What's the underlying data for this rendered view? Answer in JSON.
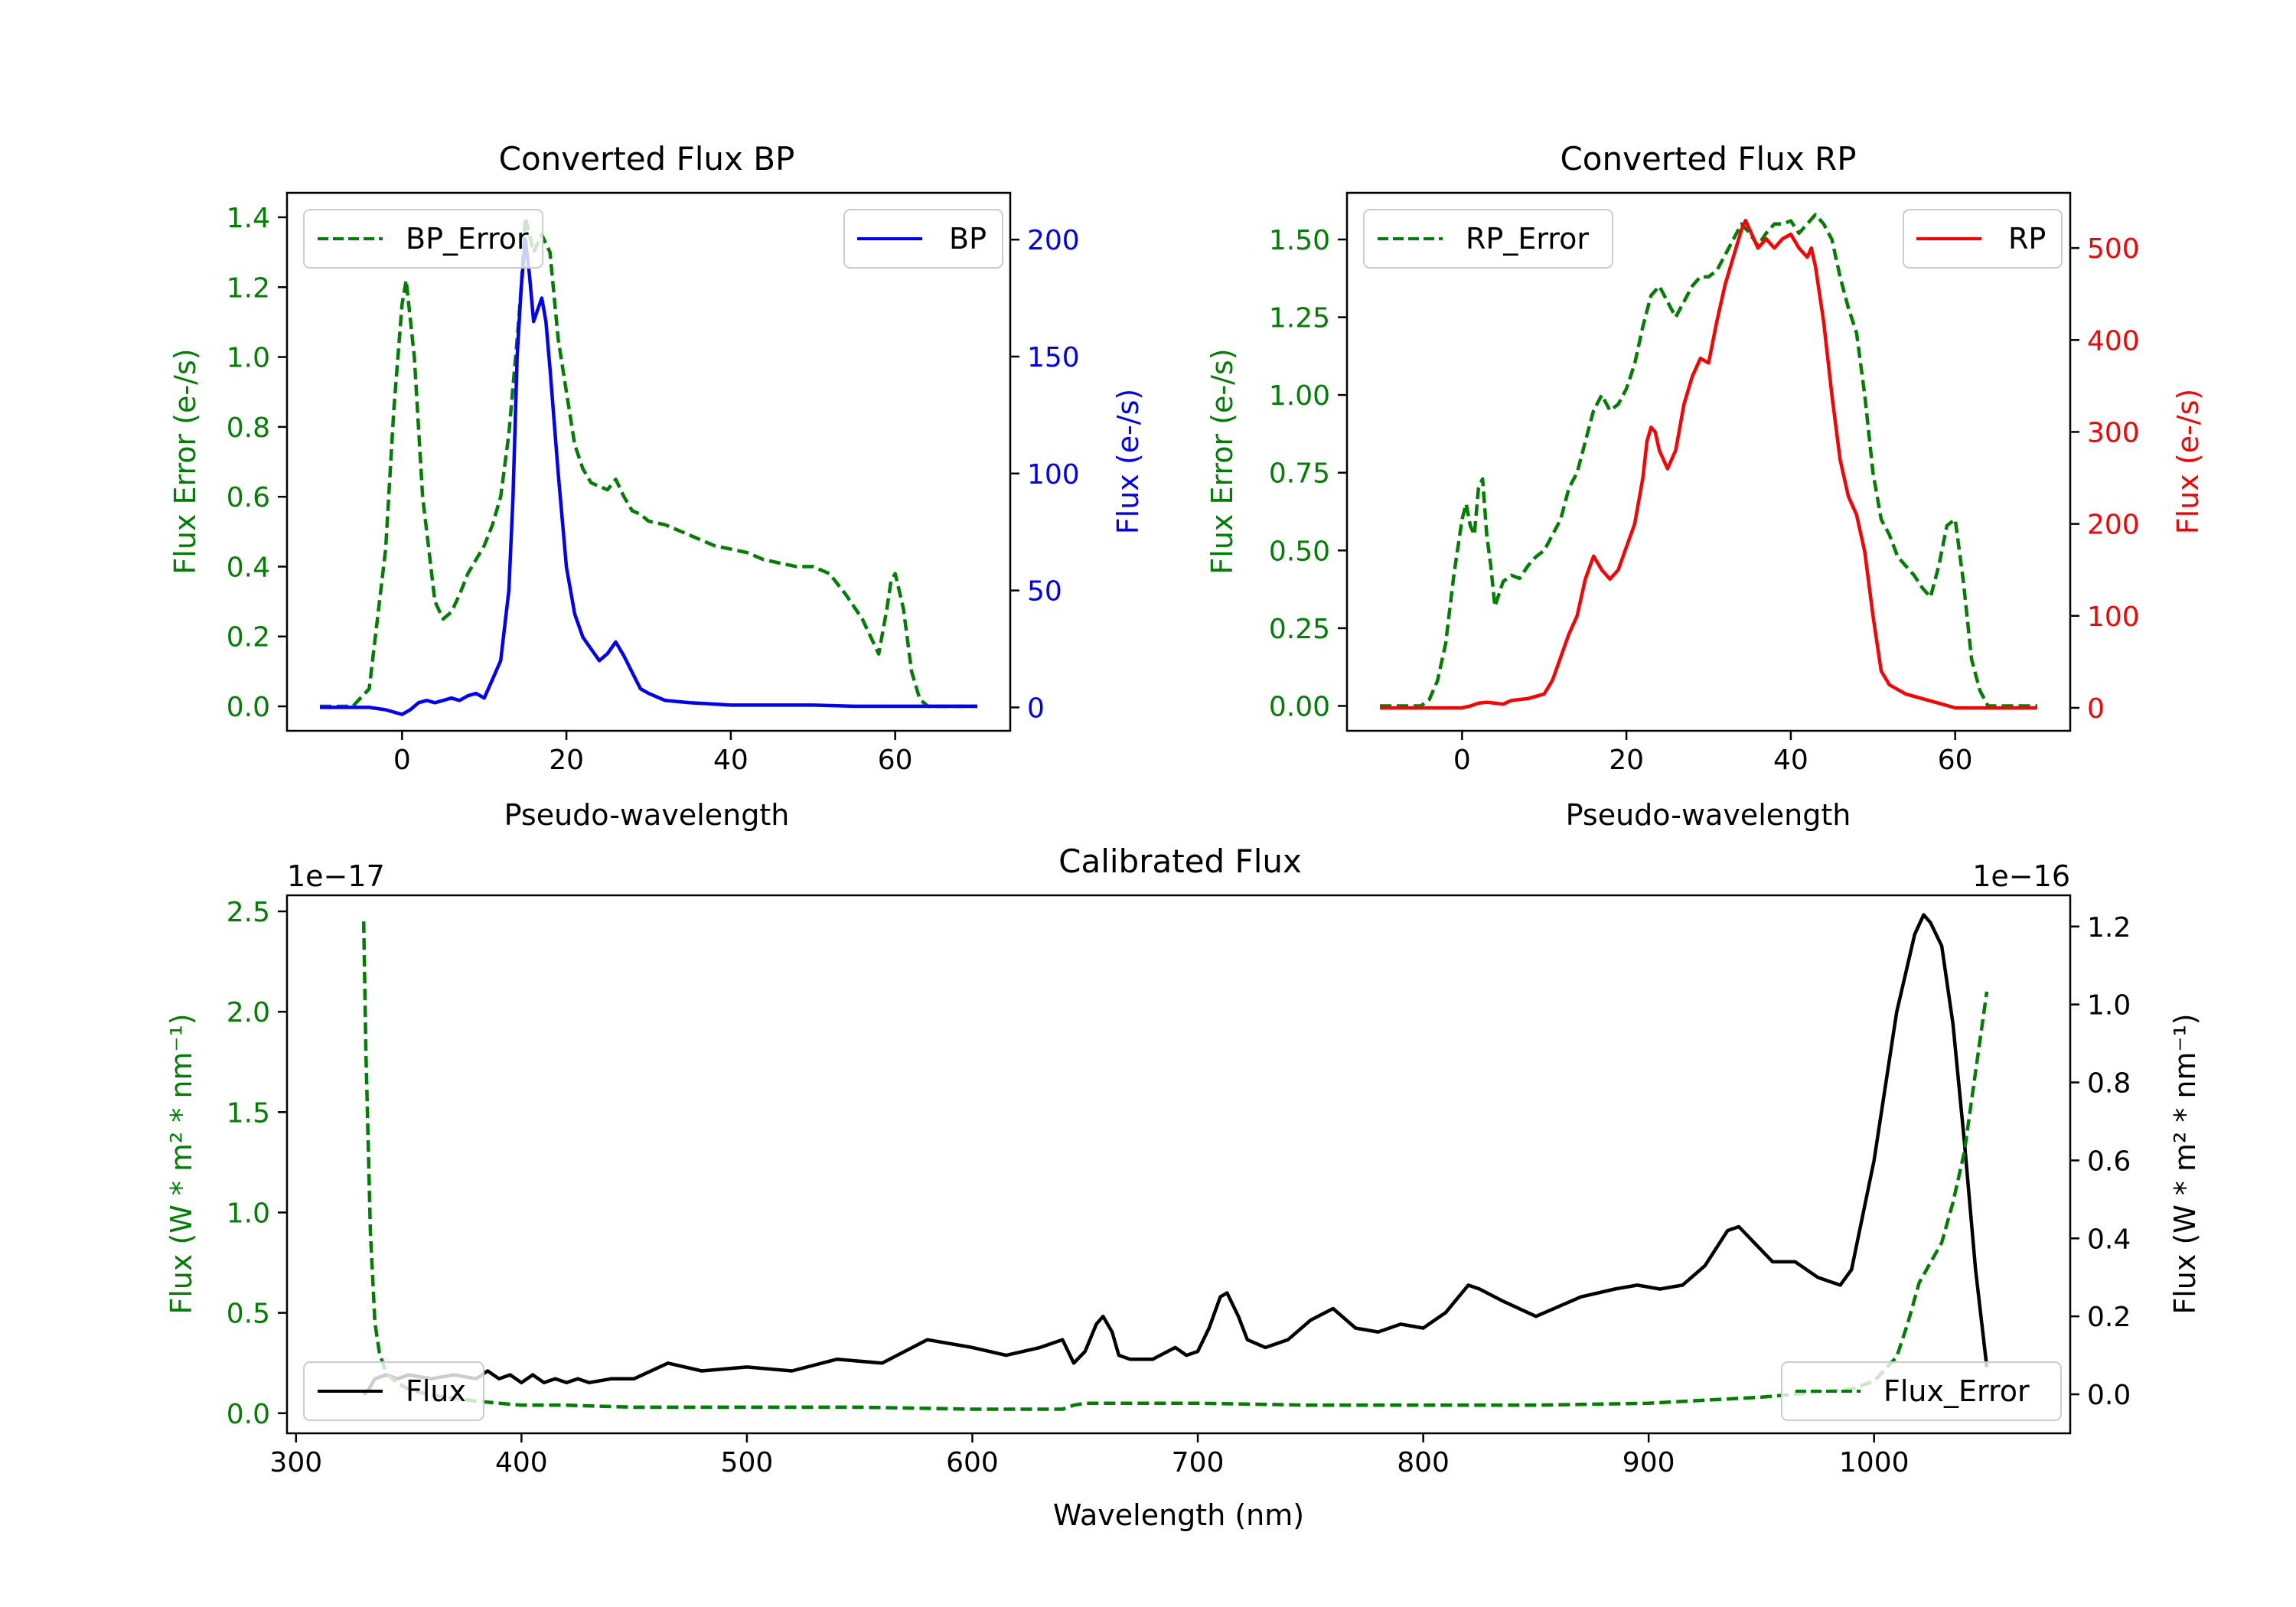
{
  "colors": {
    "bp": "#0000ff",
    "rp": "#ff0000",
    "error": "#008000",
    "flux": "#000000",
    "legend_border": "#cccccc"
  },
  "chart_data": [
    {
      "id": "bp",
      "type": "line",
      "title": "Converted Flux BP",
      "xlabel": "Pseudo-wavelength",
      "ylabel_left": "Flux Error (e-/s)",
      "ylabel_right": "Flux (e-/s)",
      "xlim": [
        -14,
        74
      ],
      "ylim_left": [
        -0.07,
        1.47
      ],
      "ylim_right": [
        -10,
        220
      ],
      "xticks": [
        0,
        20,
        40,
        60
      ],
      "yticks_left": [
        "0.0",
        "0.2",
        "0.4",
        "0.6",
        "0.8",
        "1.0",
        "1.2",
        "1.4"
      ],
      "yticks_right": [
        "0",
        "50",
        "100",
        "150",
        "200"
      ],
      "legend_left": "BP_Error",
      "legend_right": "BP",
      "series": [
        {
          "name": "BP_Error",
          "axis": "left",
          "style": "dashed",
          "color": "error",
          "x": [
            -10,
            -6,
            -4,
            -2,
            -1,
            0,
            0.5,
            1.5,
            2.5,
            3,
            4,
            5,
            6,
            7,
            8,
            9,
            10,
            11,
            12,
            13,
            14,
            14.5,
            15,
            16,
            17,
            18,
            19,
            20,
            21,
            22,
            23,
            24,
            25,
            26,
            27,
            28,
            29,
            30,
            32,
            34,
            36,
            38,
            40,
            42,
            44,
            46,
            48,
            50,
            52,
            54,
            56,
            57,
            58,
            59,
            59.5,
            60,
            61,
            62,
            63,
            64,
            66,
            68,
            70
          ],
          "y": [
            0.0,
            0.0,
            0.05,
            0.45,
            0.85,
            1.15,
            1.22,
            1.0,
            0.6,
            0.5,
            0.3,
            0.25,
            0.27,
            0.32,
            0.38,
            0.42,
            0.46,
            0.52,
            0.6,
            0.78,
            1.05,
            1.2,
            1.4,
            1.3,
            1.35,
            1.3,
            1.05,
            0.9,
            0.75,
            0.68,
            0.64,
            0.63,
            0.62,
            0.65,
            0.6,
            0.56,
            0.55,
            0.53,
            0.52,
            0.5,
            0.48,
            0.46,
            0.45,
            0.44,
            0.42,
            0.41,
            0.4,
            0.4,
            0.38,
            0.32,
            0.25,
            0.2,
            0.15,
            0.28,
            0.36,
            0.38,
            0.28,
            0.1,
            0.02,
            0.0,
            0.0,
            0.0,
            0.0
          ]
        },
        {
          "name": "BP",
          "axis": "right",
          "style": "solid",
          "color": "bp",
          "x": [
            -10,
            -4,
            -2,
            0,
            1,
            2,
            3,
            4,
            5,
            6,
            7,
            8,
            9,
            10,
            11,
            12,
            13,
            13.5,
            14,
            14.5,
            15,
            15.5,
            16,
            16.5,
            17,
            17.5,
            18,
            19,
            20,
            21,
            22,
            23,
            24,
            25,
            26,
            27,
            28,
            29,
            30,
            32,
            35,
            40,
            45,
            50,
            55,
            60,
            65,
            70
          ],
          "y": [
            0,
            0,
            -1,
            -3,
            -1,
            2,
            3,
            2,
            3,
            4,
            3,
            5,
            6,
            4,
            12,
            20,
            50,
            90,
            150,
            180,
            200,
            185,
            165,
            170,
            175,
            165,
            145,
            100,
            60,
            40,
            30,
            25,
            20,
            23,
            28,
            22,
            15,
            8,
            6,
            3,
            2,
            1,
            1,
            1,
            0.5,
            0.5,
            0.5,
            0.5
          ]
        }
      ]
    },
    {
      "id": "rp",
      "type": "line",
      "title": "Converted Flux RP",
      "xlabel": "Pseudo-wavelength",
      "ylabel_left": "Flux Error (e-/s)",
      "ylabel_right": "Flux (e-/s)",
      "xlim": [
        -14,
        74
      ],
      "ylim_left": [
        -0.08,
        1.65
      ],
      "ylim_right": [
        -25,
        560
      ],
      "xticks": [
        0,
        20,
        40,
        60
      ],
      "yticks_left": [
        "0.00",
        "0.25",
        "0.50",
        "0.75",
        "1.00",
        "1.25",
        "1.50"
      ],
      "yticks_right": [
        "0",
        "100",
        "200",
        "300",
        "400",
        "500"
      ],
      "legend_left": "RP_Error",
      "legend_right": "RP",
      "series": [
        {
          "name": "RP_Error",
          "axis": "left",
          "style": "dashed",
          "color": "error",
          "x": [
            -10,
            -5,
            -4,
            -3,
            -2,
            -1,
            0,
            0.5,
            1,
            1.5,
            2,
            2.5,
            3,
            3.5,
            4,
            5,
            6,
            7,
            8,
            9,
            10,
            11,
            12,
            13,
            14,
            15,
            16,
            17,
            18,
            19,
            20,
            21,
            22,
            23,
            24,
            25,
            26,
            27,
            28,
            29,
            30,
            31,
            32,
            33,
            34,
            35,
            36,
            37,
            38,
            39,
            40,
            41,
            42,
            43,
            44,
            45,
            46,
            47,
            48,
            49,
            50,
            51,
            52,
            53,
            54,
            55,
            56,
            57,
            58,
            59,
            60,
            61,
            62,
            63,
            64,
            66,
            70
          ],
          "y": [
            0.0,
            0.0,
            0.02,
            0.08,
            0.2,
            0.42,
            0.6,
            0.65,
            0.58,
            0.55,
            0.7,
            0.73,
            0.55,
            0.45,
            0.32,
            0.4,
            0.42,
            0.41,
            0.45,
            0.48,
            0.5,
            0.55,
            0.6,
            0.7,
            0.75,
            0.85,
            0.95,
            1.0,
            0.95,
            0.97,
            1.02,
            1.1,
            1.22,
            1.32,
            1.35,
            1.3,
            1.25,
            1.3,
            1.35,
            1.38,
            1.38,
            1.4,
            1.45,
            1.5,
            1.55,
            1.52,
            1.48,
            1.52,
            1.55,
            1.55,
            1.56,
            1.52,
            1.55,
            1.58,
            1.55,
            1.5,
            1.38,
            1.28,
            1.2,
            1.0,
            0.75,
            0.6,
            0.55,
            0.48,
            0.45,
            0.42,
            0.38,
            0.35,
            0.45,
            0.58,
            0.6,
            0.4,
            0.15,
            0.05,
            0.0,
            0.0,
            0.0
          ]
        },
        {
          "name": "RP",
          "axis": "right",
          "style": "solid",
          "color": "rp",
          "x": [
            -10,
            -2,
            0,
            1,
            2,
            3,
            4,
            5,
            6,
            8,
            10,
            11,
            12,
            13,
            14,
            15,
            16,
            17,
            18,
            19,
            20,
            21,
            22,
            22.5,
            23,
            23.5,
            24,
            25,
            26,
            27,
            28,
            29,
            30,
            31,
            32,
            33,
            34,
            34.5,
            35,
            35.5,
            36,
            37,
            38,
            39,
            40,
            41,
            42,
            42.5,
            43,
            44,
            45,
            46,
            47,
            48,
            49,
            50,
            51,
            52,
            54,
            56,
            58,
            60,
            62,
            65,
            70
          ],
          "y": [
            0,
            0,
            0,
            2,
            5,
            6,
            5,
            4,
            8,
            10,
            15,
            30,
            55,
            80,
            100,
            140,
            165,
            150,
            140,
            150,
            175,
            200,
            250,
            290,
            305,
            300,
            280,
            260,
            280,
            330,
            360,
            380,
            375,
            420,
            460,
            490,
            520,
            530,
            520,
            510,
            500,
            510,
            500,
            510,
            515,
            500,
            490,
            500,
            480,
            420,
            340,
            270,
            230,
            210,
            170,
            100,
            40,
            25,
            15,
            10,
            5,
            0,
            0,
            0,
            0
          ]
        }
      ]
    },
    {
      "id": "calibrated",
      "type": "line",
      "title": "Calibrated Flux",
      "xlabel": "Wavelength (nm)",
      "ylabel_left": "Flux (W * m² * nm⁻¹)",
      "ylabel_right": "Flux (W * m² * nm⁻¹)",
      "xlim": [
        296,
        1087
      ],
      "ylim_left": [
        -0.1,
        2.58
      ],
      "ylim_right": [
        -0.1,
        1.28
      ],
      "left_multiplier": "1e−17",
      "right_multiplier": "1e−16",
      "xticks": [
        300,
        400,
        500,
        600,
        700,
        800,
        900,
        1000
      ],
      "yticks_left": [
        "0.0",
        "0.5",
        "1.0",
        "1.5",
        "2.0",
        "2.5"
      ],
      "yticks_right": [
        "0.0",
        "0.2",
        "0.4",
        "0.6",
        "0.8",
        "1.0",
        "1.2"
      ],
      "legend_left": "Flux",
      "legend_right": "Flux_Error",
      "series": [
        {
          "name": "Flux",
          "axis": "right",
          "style": "solid",
          "color": "flux",
          "x": [
            330,
            332,
            335,
            340,
            345,
            350,
            360,
            370,
            380,
            385,
            390,
            395,
            400,
            405,
            410,
            415,
            420,
            425,
            430,
            440,
            450,
            465,
            480,
            500,
            520,
            540,
            560,
            580,
            600,
            615,
            630,
            640,
            645,
            650,
            655,
            658,
            662,
            665,
            670,
            680,
            690,
            695,
            700,
            705,
            710,
            713,
            718,
            722,
            730,
            740,
            750,
            760,
            770,
            780,
            790,
            800,
            810,
            820,
            825,
            835,
            850,
            870,
            885,
            895,
            905,
            915,
            925,
            935,
            940,
            945,
            955,
            965,
            975,
            985,
            990,
            1000,
            1010,
            1018,
            1022,
            1025,
            1030,
            1035,
            1040,
            1045,
            1050
          ],
          "y": [
            0.0,
            0.01,
            0.04,
            0.05,
            0.04,
            0.05,
            0.04,
            0.05,
            0.04,
            0.06,
            0.04,
            0.05,
            0.03,
            0.05,
            0.03,
            0.04,
            0.03,
            0.04,
            0.03,
            0.04,
            0.04,
            0.08,
            0.06,
            0.07,
            0.06,
            0.09,
            0.08,
            0.14,
            0.12,
            0.1,
            0.12,
            0.14,
            0.08,
            0.11,
            0.18,
            0.2,
            0.16,
            0.1,
            0.09,
            0.09,
            0.12,
            0.1,
            0.11,
            0.17,
            0.25,
            0.26,
            0.2,
            0.14,
            0.12,
            0.14,
            0.19,
            0.22,
            0.17,
            0.16,
            0.18,
            0.17,
            0.21,
            0.28,
            0.27,
            0.24,
            0.2,
            0.25,
            0.27,
            0.28,
            0.27,
            0.28,
            0.33,
            0.42,
            0.43,
            0.4,
            0.34,
            0.34,
            0.3,
            0.28,
            0.32,
            0.6,
            0.98,
            1.18,
            1.23,
            1.21,
            1.15,
            0.95,
            0.65,
            0.32,
            0.07
          ]
        },
        {
          "name": "Flux_Error",
          "axis": "left",
          "style": "dashed",
          "color": "error",
          "x": [
            330,
            331,
            333,
            335,
            337,
            340,
            345,
            350,
            360,
            380,
            400,
            420,
            450,
            500,
            550,
            600,
            640,
            645,
            650,
            700,
            750,
            800,
            850,
            900,
            950,
            990,
            1000,
            1010,
            1015,
            1020,
            1025,
            1030,
            1035,
            1040,
            1045,
            1050
          ],
          "y": [
            2.45,
            1.8,
            0.9,
            0.45,
            0.3,
            0.2,
            0.15,
            0.12,
            0.09,
            0.06,
            0.04,
            0.04,
            0.03,
            0.03,
            0.03,
            0.02,
            0.02,
            0.04,
            0.05,
            0.05,
            0.04,
            0.04,
            0.04,
            0.05,
            0.08,
            0.12,
            0.16,
            0.28,
            0.45,
            0.65,
            0.75,
            0.85,
            1.05,
            1.3,
            1.7,
            2.1
          ]
        }
      ]
    }
  ]
}
